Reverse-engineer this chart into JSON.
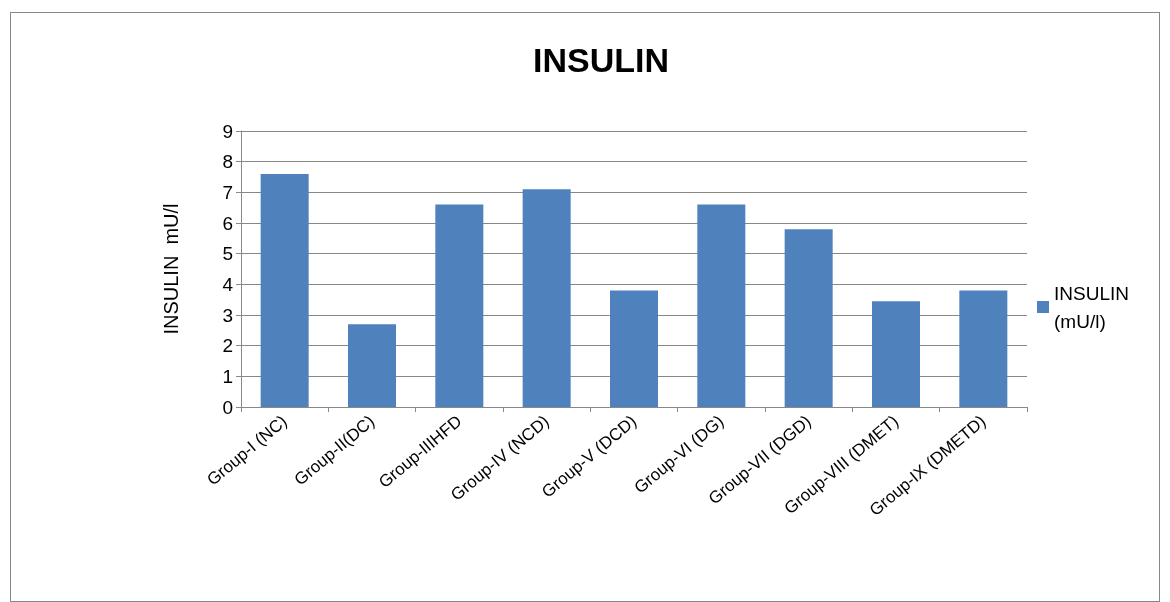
{
  "chart_data": {
    "type": "bar",
    "title": "INSULIN",
    "ylabel": "INSULIN  mU/l",
    "categories": [
      "Group-I (NC)",
      "Group-II(DC)",
      "Group-IIIHFD",
      "Group-IV (NCD)",
      "Group-V (DCD)",
      "Group-VI (DG)",
      "Group-VII (DGD)",
      "Group-VIII (DMET)",
      "Group-IX (DMETD)"
    ],
    "series": [
      {
        "name": "INSULIN (mU/l)",
        "color": "#4f81bd",
        "values": [
          7.6,
          2.7,
          6.6,
          7.1,
          3.8,
          6.6,
          5.8,
          3.45,
          3.8
        ]
      }
    ],
    "ylim": [
      0,
      9
    ],
    "yticks": [
      0,
      1,
      2,
      3,
      4,
      5,
      6,
      7,
      8,
      9
    ],
    "grid": "y",
    "legend": "right"
  }
}
